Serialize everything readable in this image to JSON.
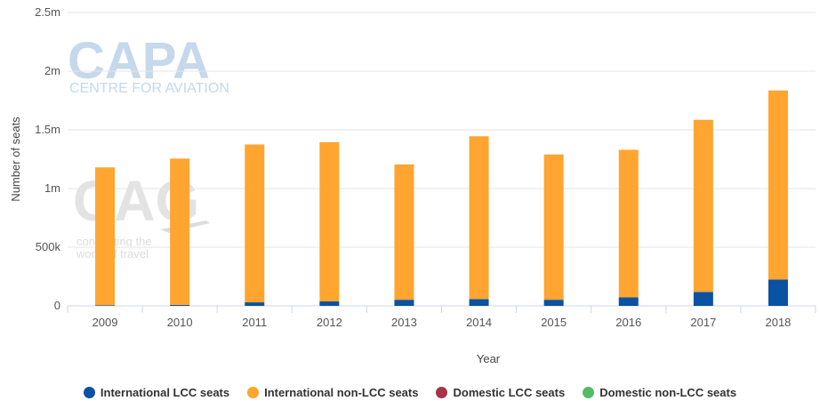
{
  "chart_data": {
    "type": "bar",
    "stacked": true,
    "categories": [
      "2009",
      "2010",
      "2011",
      "2012",
      "2013",
      "2014",
      "2015",
      "2016",
      "2017",
      "2018"
    ],
    "series": [
      {
        "name": "International LCC seats",
        "color": "#0a52a2",
        "values": [
          5000,
          8000,
          30000,
          38000,
          52000,
          58000,
          52000,
          72000,
          118000,
          225000
        ]
      },
      {
        "name": "International non-LCC seats",
        "color": "#ffa530",
        "values": [
          1175000,
          1247000,
          1345000,
          1357000,
          1153000,
          1387000,
          1238000,
          1258000,
          1467000,
          1610000
        ]
      },
      {
        "name": "Domestic LCC seats",
        "color": "#a8334a",
        "values": [
          0,
          0,
          0,
          0,
          0,
          0,
          0,
          0,
          0,
          0
        ]
      },
      {
        "name": "Domestic non-LCC seats",
        "color": "#55bb66",
        "values": [
          0,
          0,
          0,
          0,
          0,
          0,
          0,
          0,
          0,
          0
        ]
      }
    ],
    "xlabel": "Year",
    "ylabel": "Number of seats",
    "ylim": [
      0,
      2500000
    ],
    "yticks": [
      0,
      500000,
      1000000,
      1500000,
      2000000,
      2500000
    ],
    "ytick_labels": [
      "0",
      "500k",
      "1m",
      "1.5m",
      "2m",
      "2.5m"
    ],
    "grid": true,
    "legend_position": "bottom"
  },
  "watermarks": {
    "capa": "CAPA",
    "capa_sub": "CENTRE FOR AVIATION",
    "cag": "CAG",
    "cag_sub_1": "connecting the",
    "cag_sub_2": "world of travel"
  }
}
